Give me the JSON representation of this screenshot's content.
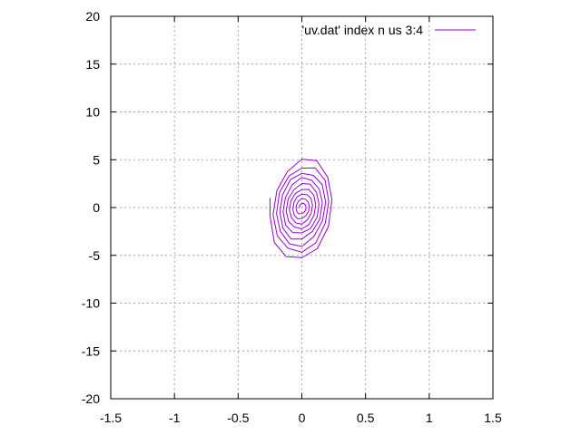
{
  "chart_data": {
    "type": "line",
    "title": "",
    "xlabel": "",
    "ylabel": "",
    "xlim": [
      -1.5,
      1.5
    ],
    "ylim": [
      -20,
      20
    ],
    "xticks": [
      -1.5,
      -1,
      -0.5,
      0,
      0.5,
      1,
      1.5
    ],
    "xtick_labels": [
      "-1.5",
      "-1",
      "-0.5",
      "0",
      "0.5",
      "1",
      "1.5"
    ],
    "yticks": [
      -20,
      -15,
      -10,
      -5,
      0,
      5,
      10,
      15,
      20
    ],
    "ytick_labels": [
      "-20",
      "-15",
      "-10",
      "-5",
      "0",
      "5",
      "10",
      "15",
      "20"
    ],
    "grid": true,
    "legend_position": "top-right",
    "series": [
      {
        "name": "'uv.dat' index n us 3:4",
        "color": "#9400d3",
        "spiral": {
          "start": [
            -0.25,
            1.0
          ],
          "amplitude_x_range": [
            0.25,
            0.02
          ],
          "amplitude_y_range": [
            5.8,
            0.3
          ],
          "turns": 9
        }
      }
    ]
  }
}
